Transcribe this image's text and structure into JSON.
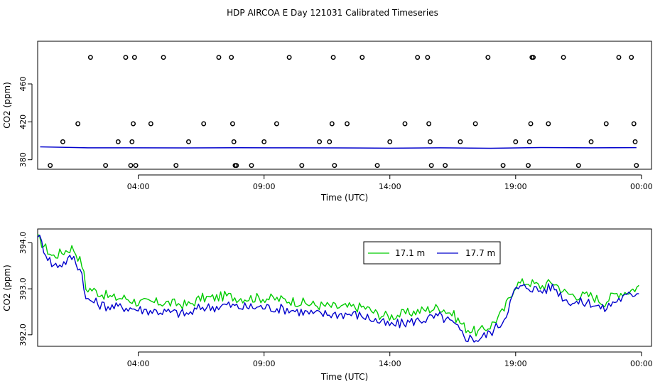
{
  "title": "HDP AIRCOA E  Day 121031  Calibrated Timeseries",
  "chart_data": [
    {
      "type": "scatter",
      "xlabel": "Time (UTC)",
      "ylabel": "CO2 (ppm)",
      "xlim": [
        0.0,
        24.4
      ],
      "xticks": [
        4,
        9,
        14,
        19,
        24
      ],
      "xticklabels": [
        "04:00",
        "09:00",
        "14:00",
        "19:00",
        "00:00"
      ],
      "ylim": [
        370,
        505
      ],
      "yticks": [
        380,
        420,
        460
      ],
      "yticklabels": [
        "380",
        "420",
        "460"
      ],
      "line": {
        "name": "17.7 m",
        "color": "#0000cc",
        "x": [
          0.1,
          2.0,
          4.0,
          6.0,
          8.0,
          10.0,
          12.0,
          14.0,
          16.0,
          18.0,
          20.0,
          22.0,
          23.8
        ],
        "y": [
          393.6,
          392.6,
          392.6,
          392.5,
          392.7,
          392.6,
          392.5,
          392.2,
          392.6,
          392.1,
          392.9,
          392.6,
          392.8
        ]
      },
      "points": {
        "x": [
          0.5,
          1.0,
          1.6,
          2.1,
          2.7,
          3.2,
          3.5,
          3.7,
          3.75,
          3.8,
          3.85,
          3.9,
          4.5,
          5.0,
          5.5,
          6.0,
          6.6,
          7.2,
          7.7,
          7.75,
          7.8,
          7.85,
          7.9,
          8.5,
          9.0,
          9.5,
          10.0,
          10.5,
          11.2,
          11.6,
          11.7,
          11.75,
          11.8,
          12.3,
          12.9,
          13.5,
          14.0,
          14.6,
          15.1,
          15.5,
          15.55,
          15.6,
          15.65,
          16.2,
          16.8,
          17.4,
          17.9,
          18.5,
          19.0,
          19.5,
          19.55,
          19.6,
          19.65,
          19.7,
          20.3,
          20.9,
          21.5,
          22.0,
          22.6,
          23.1,
          23.6,
          23.7,
          23.75,
          23.8
        ],
        "y": [
          374,
          399,
          418,
          488,
          374,
          399,
          488,
          374,
          399,
          418,
          488,
          374,
          418,
          488,
          374,
          399,
          418,
          488,
          488,
          418,
          399,
          374,
          374,
          374,
          399,
          418,
          488,
          374,
          399,
          399,
          418,
          488,
          374,
          418,
          488,
          374,
          399,
          418,
          488,
          488,
          418,
          399,
          374,
          374,
          399,
          418,
          488,
          374,
          399,
          374,
          399,
          418,
          488,
          488,
          418,
          488,
          374,
          399,
          418,
          488,
          488,
          418,
          399,
          374
        ]
      }
    },
    {
      "type": "line",
      "xlabel": "Time (UTC)",
      "ylabel": "CO2 (ppm)",
      "xlim": [
        0.0,
        24.4
      ],
      "xticks": [
        4,
        9,
        14,
        19,
        24
      ],
      "xticklabels": [
        "04:00",
        "09:00",
        "14:00",
        "19:00",
        "00:00"
      ],
      "ylim": [
        391.75,
        394.3
      ],
      "yticks": [
        392.0,
        393.0,
        394.0
      ],
      "yticklabels": [
        "392.0",
        "393.0",
        "394.0"
      ],
      "legend": {
        "position": "top-center",
        "entries": [
          "17.1 m",
          "17.7 m"
        ]
      },
      "series": [
        {
          "name": "17.1 m",
          "color": "#00cc00",
          "x": [
            0.0,
            0.3,
            0.6,
            1.0,
            1.4,
            1.8,
            1.9,
            2.1,
            2.5,
            3.0,
            3.5,
            4.0,
            5.0,
            6.0,
            6.5,
            7.0,
            7.5,
            8.0,
            9.0,
            10.0,
            11.0,
            12.0,
            12.5,
            13.0,
            13.5,
            14.0,
            14.5,
            15.0,
            15.5,
            16.0,
            16.5,
            17.0,
            17.5,
            18.0,
            18.5,
            19.0,
            19.5,
            20.0,
            20.5,
            21.0,
            21.5,
            22.0,
            22.5,
            23.0,
            23.5,
            23.9
          ],
          "y": [
            394.1,
            393.9,
            393.7,
            393.8,
            393.9,
            393.5,
            393.0,
            393.0,
            392.9,
            392.8,
            392.8,
            392.7,
            392.7,
            392.65,
            392.8,
            392.8,
            392.85,
            392.8,
            392.8,
            392.75,
            392.65,
            392.6,
            392.6,
            392.6,
            392.45,
            392.4,
            392.45,
            392.5,
            392.55,
            392.6,
            392.45,
            392.15,
            392.05,
            392.2,
            392.5,
            393.1,
            393.15,
            393.05,
            393.15,
            392.9,
            392.85,
            392.85,
            392.7,
            392.9,
            392.95,
            393.05
          ]
        },
        {
          "name": "17.7 m",
          "color": "#0000cc",
          "x": [
            0.0,
            0.3,
            0.6,
            1.0,
            1.4,
            1.8,
            1.9,
            2.1,
            2.5,
            3.0,
            3.5,
            4.0,
            5.0,
            6.0,
            6.5,
            7.0,
            7.5,
            8.0,
            9.0,
            10.0,
            11.0,
            12.0,
            12.5,
            13.0,
            13.5,
            14.0,
            14.5,
            15.0,
            15.5,
            16.0,
            16.5,
            17.0,
            17.5,
            18.0,
            18.5,
            19.0,
            19.5,
            20.0,
            20.5,
            21.0,
            21.5,
            22.0,
            22.5,
            23.0,
            23.5,
            23.9
          ],
          "y": [
            394.2,
            393.8,
            393.5,
            393.55,
            393.7,
            393.3,
            392.75,
            392.75,
            392.65,
            392.6,
            392.6,
            392.55,
            392.5,
            392.45,
            392.6,
            392.6,
            392.65,
            392.6,
            392.6,
            392.55,
            392.45,
            392.45,
            392.45,
            392.4,
            392.3,
            392.2,
            392.25,
            392.3,
            392.35,
            392.4,
            392.25,
            391.95,
            391.9,
            392.05,
            392.3,
            393.0,
            393.05,
            392.95,
            393.05,
            392.75,
            392.7,
            392.7,
            392.55,
            392.75,
            392.85,
            392.95
          ]
        }
      ]
    }
  ]
}
